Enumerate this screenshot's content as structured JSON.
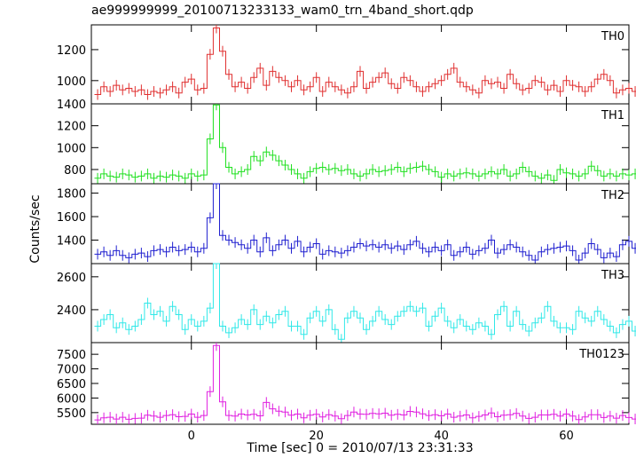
{
  "title": "ae999999999_20100713233133_wam0_trn_4band_short.qdp",
  "ylabel": "Counts/sec",
  "xlabel": "Time [sec] 0 = 2010/07/13 23:31:33",
  "chart_data": [
    {
      "type": "line",
      "name": "TH0",
      "color": "#e03030",
      "xlim": [
        -16,
        70
      ],
      "ylim": [
        850,
        1360
      ],
      "yticks": [
        1000,
        1200
      ],
      "xticks": [
        0,
        20,
        40,
        60
      ],
      "x_start": -15,
      "bin": 1,
      "values": [
        910,
        960,
        930,
        970,
        940,
        950,
        930,
        940,
        910,
        930,
        920,
        940,
        960,
        920,
        990,
        1010,
        940,
        950,
        1170,
        1340,
        1190,
        1040,
        960,
        990,
        950,
        1020,
        1080,
        970,
        1060,
        1020,
        1000,
        960,
        1000,
        940,
        960,
        1020,
        930,
        990,
        960,
        940,
        920,
        960,
        1060,
        950,
        990,
        1020,
        1050,
        980,
        950,
        1020,
        1000,
        960,
        930,
        960,
        980,
        1000,
        1040,
        1080,
        990,
        960,
        940,
        920,
        1000,
        980,
        990,
        950,
        1040,
        980,
        940,
        950,
        1000,
        990,
        940,
        970,
        930,
        1000,
        970,
        960,
        930,
        960,
        1010,
        1040,
        1000,
        920,
        940,
        950,
        930,
        970
      ],
      "panel_label": "TH0"
    },
    {
      "type": "line",
      "name": "TH1",
      "color": "#20e020",
      "xlim": [
        -16,
        70
      ],
      "ylim": [
        670,
        1400
      ],
      "yticks": [
        800,
        1000,
        1200,
        1400
      ],
      "xticks": [
        0,
        20,
        40,
        60
      ],
      "x_start": -15,
      "bin": 1,
      "values": [
        720,
        760,
        740,
        730,
        760,
        750,
        730,
        740,
        760,
        720,
        740,
        730,
        750,
        740,
        720,
        760,
        740,
        750,
        1080,
        1390,
        1000,
        820,
        760,
        780,
        800,
        920,
        880,
        960,
        930,
        880,
        840,
        800,
        760,
        720,
        780,
        810,
        820,
        800,
        810,
        790,
        800,
        760,
        740,
        760,
        800,
        780,
        790,
        800,
        820,
        780,
        810,
        820,
        830,
        800,
        780,
        730,
        760,
        740,
        760,
        770,
        760,
        740,
        760,
        780,
        760,
        800,
        740,
        760,
        820,
        780,
        740,
        720,
        750,
        700,
        800,
        770,
        760,
        740,
        760,
        830,
        790,
        740,
        760,
        740,
        760,
        750,
        760,
        770
      ],
      "panel_label": "TH1"
    },
    {
      "type": "line",
      "name": "TH2",
      "color": "#2020d0",
      "xlim": [
        -16,
        70
      ],
      "ylim": [
        1200,
        1880
      ],
      "yticks": [
        1400,
        1600,
        1800
      ],
      "xticks": [
        0,
        20,
        40,
        60
      ],
      "x_start": -15,
      "bin": 1,
      "values": [
        1280,
        1300,
        1270,
        1310,
        1270,
        1250,
        1280,
        1290,
        1260,
        1310,
        1320,
        1300,
        1340,
        1310,
        1320,
        1340,
        1300,
        1330,
        1590,
        1880,
        1440,
        1400,
        1380,
        1360,
        1330,
        1400,
        1300,
        1420,
        1310,
        1360,
        1400,
        1330,
        1390,
        1300,
        1340,
        1370,
        1280,
        1310,
        1300,
        1290,
        1310,
        1340,
        1370,
        1350,
        1360,
        1340,
        1360,
        1330,
        1350,
        1320,
        1360,
        1390,
        1330,
        1300,
        1340,
        1310,
        1360,
        1270,
        1300,
        1340,
        1280,
        1310,
        1330,
        1400,
        1290,
        1320,
        1360,
        1340,
        1300,
        1270,
        1230,
        1300,
        1320,
        1330,
        1340,
        1350,
        1310,
        1230,
        1290,
        1370,
        1320,
        1250,
        1290,
        1260,
        1360,
        1390,
        1330,
        1300
      ],
      "panel_label": "TH2"
    },
    {
      "type": "line",
      "name": "TH3",
      "color": "#30e8e8",
      "xlim": [
        -16,
        70
      ],
      "ylim": [
        2200,
        2680
      ],
      "yticks": [
        2400,
        2600
      ],
      "xticks": [
        0,
        20,
        40,
        60
      ],
      "x_start": -15,
      "bin": 1,
      "values": [
        2300,
        2340,
        2370,
        2290,
        2320,
        2280,
        2300,
        2340,
        2440,
        2370,
        2390,
        2330,
        2420,
        2370,
        2280,
        2340,
        2300,
        2330,
        2410,
        2680,
        2300,
        2260,
        2290,
        2340,
        2310,
        2400,
        2310,
        2360,
        2320,
        2370,
        2390,
        2300,
        2300,
        2250,
        2350,
        2390,
        2330,
        2400,
        2280,
        2220,
        2350,
        2390,
        2350,
        2280,
        2330,
        2390,
        2340,
        2310,
        2360,
        2390,
        2420,
        2390,
        2410,
        2300,
        2360,
        2410,
        2330,
        2290,
        2340,
        2300,
        2280,
        2320,
        2300,
        2250,
        2370,
        2420,
        2300,
        2390,
        2310,
        2270,
        2320,
        2350,
        2420,
        2330,
        2290,
        2290,
        2280,
        2390,
        2350,
        2330,
        2390,
        2340,
        2300,
        2260,
        2310,
        2330,
        2270,
        2320
      ],
      "panel_label": "TH3"
    },
    {
      "type": "line",
      "name": "TH0123",
      "color": "#e020e0",
      "xlim": [
        -16,
        70
      ],
      "ylim": [
        5100,
        7900
      ],
      "yticks": [
        5500,
        6000,
        6500,
        7000,
        7500
      ],
      "xticks": [
        0,
        20,
        40,
        60
      ],
      "x_start": -15,
      "bin": 1,
      "values": [
        5250,
        5320,
        5340,
        5280,
        5340,
        5270,
        5300,
        5310,
        5410,
        5380,
        5340,
        5400,
        5430,
        5360,
        5370,
        5450,
        5340,
        5400,
        6220,
        7800,
        5870,
        5400,
        5380,
        5450,
        5420,
        5440,
        5390,
        5850,
        5630,
        5550,
        5520,
        5410,
        5450,
        5320,
        5410,
        5440,
        5350,
        5430,
        5380,
        5290,
        5400,
        5520,
        5450,
        5440,
        5470,
        5460,
        5480,
        5410,
        5440,
        5420,
        5540,
        5520,
        5460,
        5400,
        5430,
        5390,
        5450,
        5340,
        5380,
        5420,
        5320,
        5370,
        5420,
        5490,
        5360,
        5410,
        5430,
        5470,
        5380,
        5300,
        5340,
        5420,
        5420,
        5440,
        5380,
        5450,
        5380,
        5260,
        5350,
        5430,
        5430,
        5330,
        5380,
        5310,
        5400,
        5330,
        5280,
        5270
      ],
      "panel_label": "TH0123"
    }
  ]
}
